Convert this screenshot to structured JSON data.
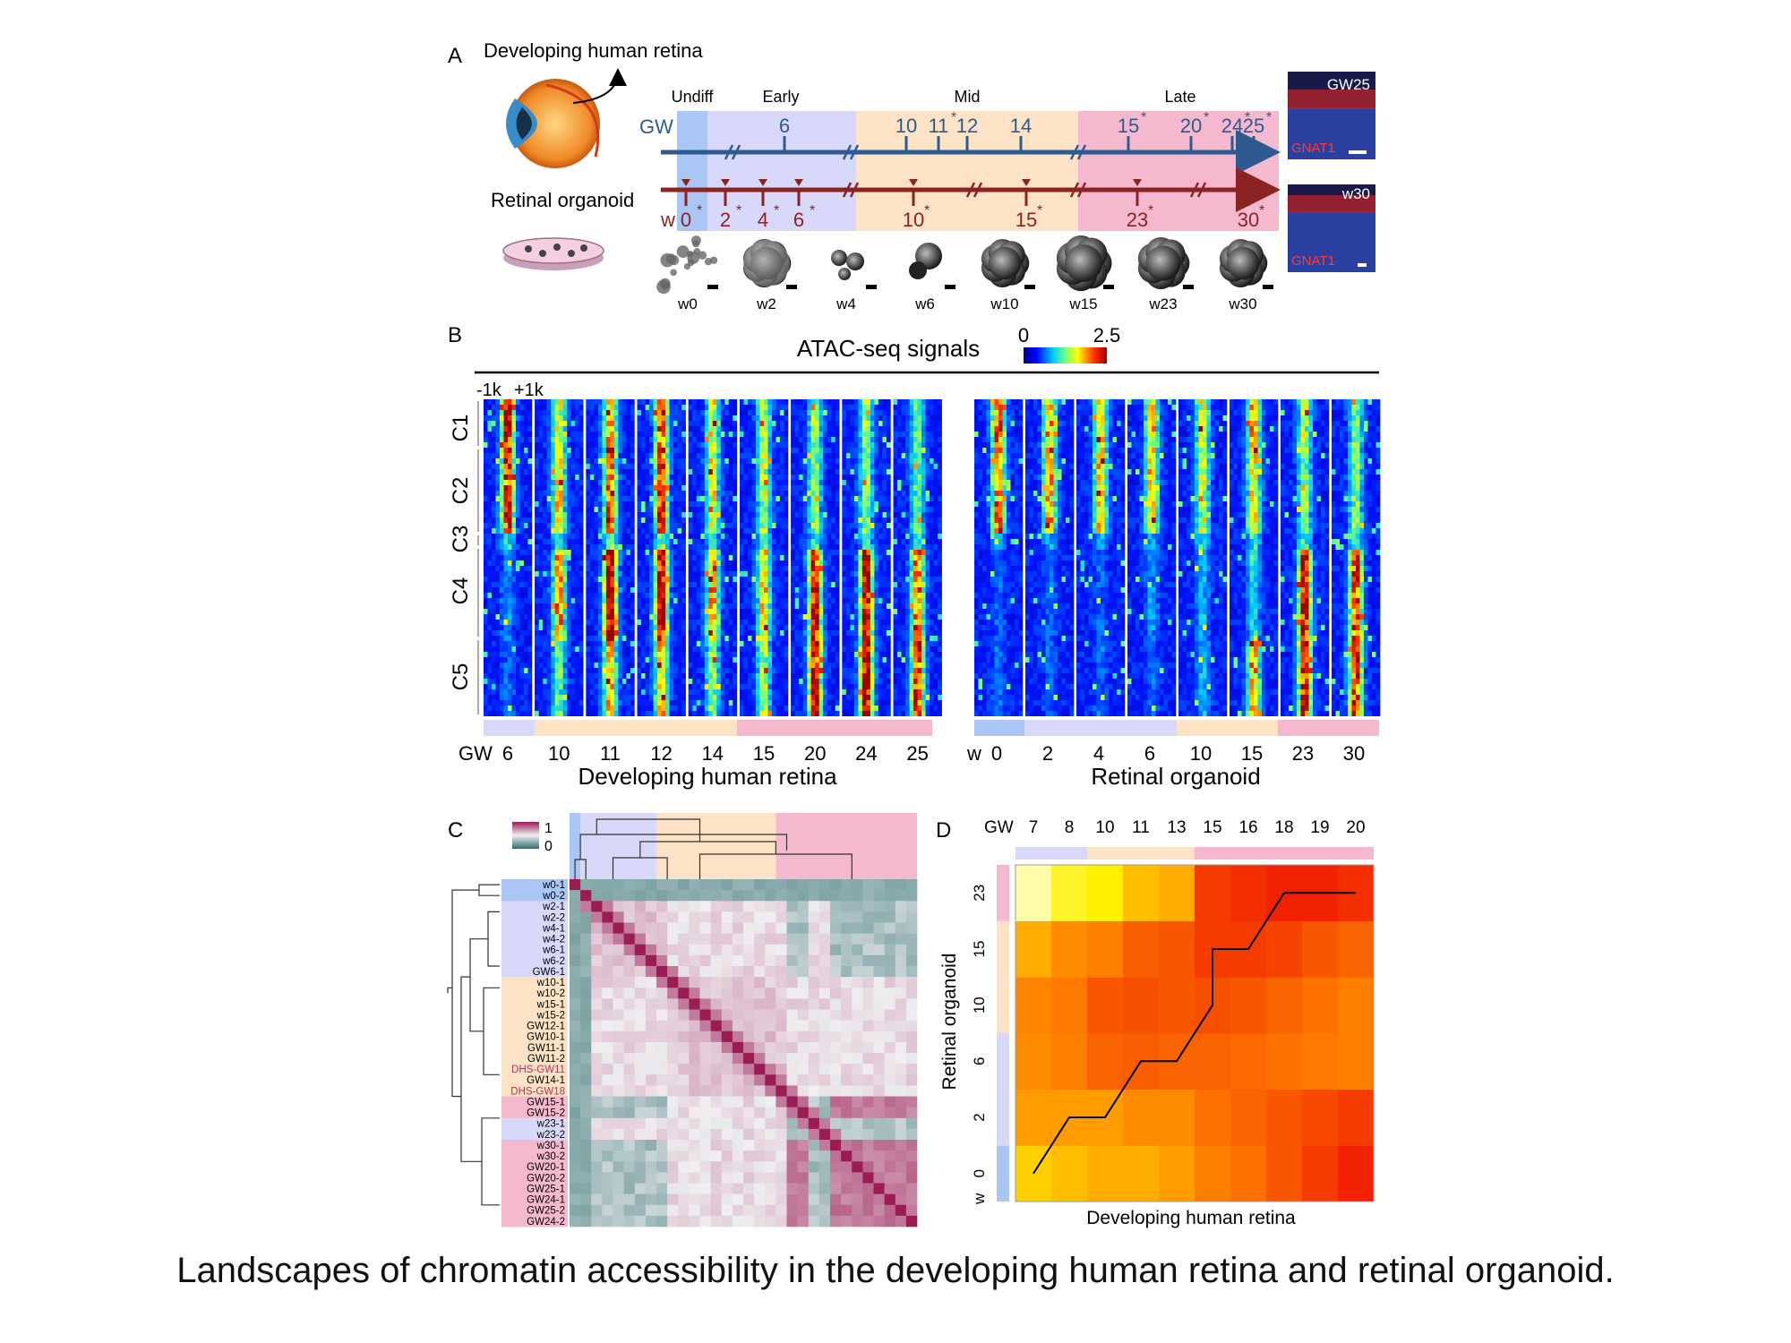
{
  "panelA": {
    "letter": "A",
    "title": "Developing human retina",
    "organoid_label": "Retinal organoid",
    "stages": [
      "Undiff",
      "Early",
      "Mid",
      "Late"
    ],
    "gw_label": "GW",
    "gw_ticks": [
      {
        "v": "6",
        "star": false
      },
      {
        "v": "10",
        "star": false
      },
      {
        "v": "11",
        "star": true
      },
      {
        "v": "12",
        "star": false
      },
      {
        "v": "14",
        "star": false
      },
      {
        "v": "15",
        "star": true
      },
      {
        "v": "20",
        "star": true
      },
      {
        "v": "24",
        "star": true
      },
      {
        "v": "25",
        "star": true
      }
    ],
    "w_label": "w",
    "w_ticks": [
      {
        "v": "0",
        "star": true
      },
      {
        "v": "2",
        "star": true
      },
      {
        "v": "4",
        "star": true
      },
      {
        "v": "6",
        "star": true
      },
      {
        "v": "10",
        "star": true
      },
      {
        "v": "15",
        "star": true
      },
      {
        "v": "23",
        "star": true
      },
      {
        "v": "30",
        "star": true
      }
    ],
    "images": [
      "w0",
      "w2",
      "w4",
      "w6",
      "w10",
      "w15",
      "w23",
      "w30"
    ],
    "micro_top": {
      "tag": "GW25",
      "stain": "GNAT1"
    },
    "micro_bottom": {
      "tag": "w30",
      "stain": "GNAT1"
    }
  },
  "panelB": {
    "letter": "B",
    "title": "ATAC-seq signals",
    "scale_min": "0",
    "scale_max": "2.5",
    "window_left": "-1k",
    "window_right": "+1k",
    "clusters": [
      "C1",
      "C2",
      "C3",
      "C4",
      "C5"
    ],
    "retina_prefix": "GW",
    "retina_cols": [
      "6",
      "10",
      "11",
      "12",
      "14",
      "15",
      "20",
      "24",
      "25"
    ],
    "retina_label": "Developing human retina",
    "organoid_prefix": "w",
    "organoid_cols": [
      "0",
      "2",
      "4",
      "6",
      "10",
      "15",
      "23",
      "30"
    ],
    "organoid_label": "Retinal organoid"
  },
  "panelC": {
    "letter": "C",
    "scale_max": "1",
    "scale_min": "0",
    "samples": [
      "w0-1",
      "w0-2",
      "w2-1",
      "w2-2",
      "w4-1",
      "w4-2",
      "w6-1",
      "w6-2",
      "GW6-1",
      "w10-1",
      "w10-2",
      "w15-1",
      "w15-2",
      "GW12-1",
      "GW10-1",
      "GW11-1",
      "GW11-2",
      "DHS-GW11",
      "GW14-1",
      "DHS-GW18",
      "GW15-1",
      "GW15-2",
      "w23-1",
      "w23-2",
      "w30-1",
      "w30-2",
      "GW20-1",
      "GW20-2",
      "GW25-1",
      "GW24-1",
      "GW25-2",
      "GW24-2"
    ]
  },
  "panelD": {
    "letter": "D",
    "x_prefix": "GW",
    "x_ticks": [
      "7",
      "8",
      "10",
      "11",
      "13",
      "15",
      "16",
      "18",
      "19",
      "20"
    ],
    "y_prefix": "w",
    "y_ticks": [
      "0",
      "2",
      "6",
      "10",
      "15",
      "23"
    ],
    "ylabel": "Retinal organoid",
    "xlabel": "Developing human retina"
  },
  "colors": {
    "undiff": "#a9c6f5",
    "early": "#d8d9fa",
    "mid": "#fde3c5",
    "late": "#f5b9cf",
    "gw_axis": "#2f5a8f",
    "w_axis": "#8b2323"
  },
  "caption": "Landscapes of chromatin accessibility in the developing human retina and retinal organoid."
}
